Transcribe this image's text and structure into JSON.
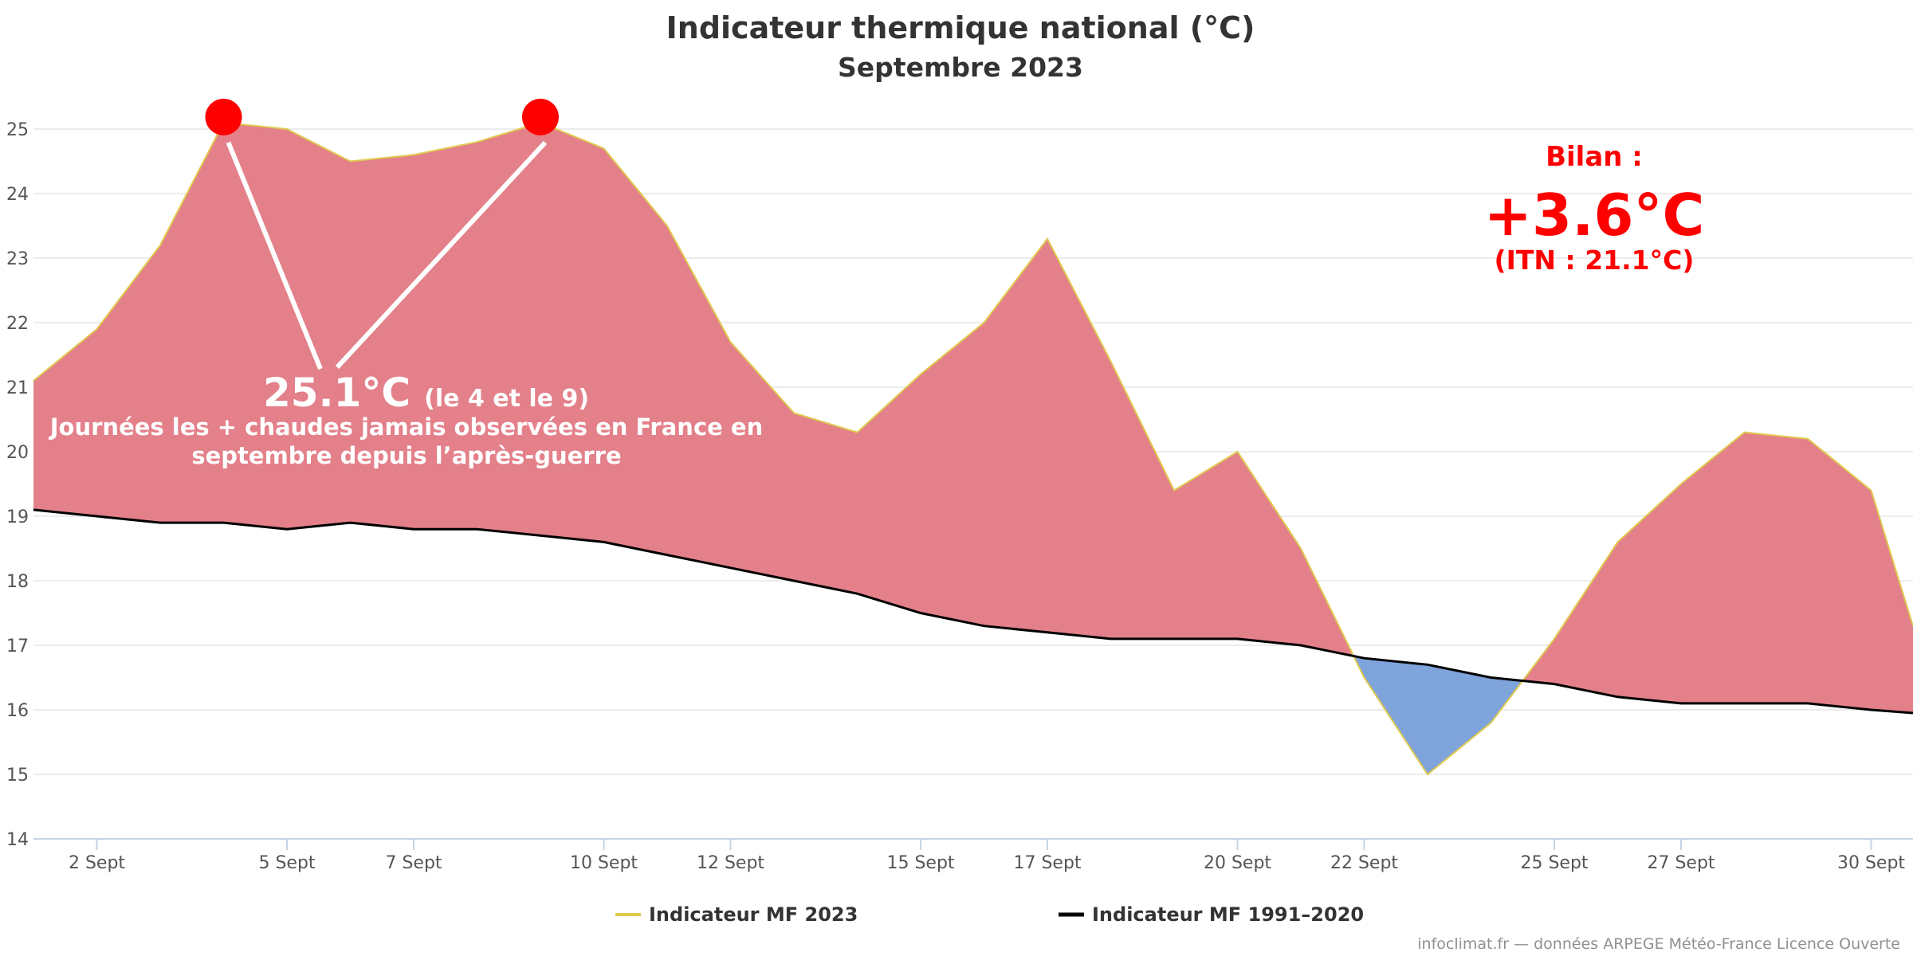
{
  "chart_data": {
    "type": "area",
    "title": "Indicateur thermique national (°C)",
    "subtitle": "Septembre 2023",
    "x": [
      1,
      2,
      3,
      4,
      5,
      6,
      7,
      8,
      9,
      10,
      11,
      12,
      13,
      14,
      15,
      16,
      17,
      18,
      19,
      20,
      21,
      22,
      23,
      24,
      25,
      26,
      27,
      28,
      29,
      30
    ],
    "x_tick_labels": [
      {
        "day": 2,
        "label": "2 Sept"
      },
      {
        "day": 5,
        "label": "5 Sept"
      },
      {
        "day": 7,
        "label": "7 Sept"
      },
      {
        "day": 10,
        "label": "10 Sept"
      },
      {
        "day": 12,
        "label": "12 Sept"
      },
      {
        "day": 15,
        "label": "15 Sept"
      },
      {
        "day": 17,
        "label": "17 Sept"
      },
      {
        "day": 20,
        "label": "20 Sept"
      },
      {
        "day": 22,
        "label": "22 Sept"
      },
      {
        "day": 25,
        "label": "25 Sept"
      },
      {
        "day": 27,
        "label": "27 Sept"
      },
      {
        "day": 30,
        "label": "30 Sept"
      }
    ],
    "ylim": [
      14,
      25.5
    ],
    "y_ticks": [
      14,
      15,
      16,
      17,
      18,
      19,
      20,
      21,
      22,
      23,
      24,
      25
    ],
    "grid": true,
    "legend_position": "bottom-center",
    "series": [
      {
        "name": "Indicateur MF 2023",
        "color": "#e0c94e",
        "values": [
          21.1,
          21.9,
          23.2,
          25.1,
          25.0,
          24.5,
          24.6,
          24.8,
          25.1,
          24.7,
          23.5,
          21.7,
          20.6,
          20.3,
          21.2,
          22.0,
          23.3,
          21.4,
          19.4,
          20.0,
          18.5,
          16.5,
          15.0,
          15.8,
          17.1,
          18.6,
          19.5,
          20.3,
          20.2,
          19.4
        ]
      },
      {
        "name": "Indicateur MF 1991–2020",
        "color": "#000000",
        "values": [
          19.1,
          19.0,
          18.9,
          18.9,
          18.8,
          18.9,
          18.8,
          18.8,
          18.7,
          18.6,
          18.4,
          18.2,
          18.0,
          17.8,
          17.5,
          17.3,
          17.2,
          17.1,
          17.1,
          17.1,
          17.0,
          16.8,
          16.7,
          16.5,
          16.4,
          16.2,
          16.1,
          16.1,
          16.1,
          16.0
        ]
      }
    ],
    "fill_above_color": "#e3808a",
    "fill_below_color": "#7fa3db",
    "annotation": {
      "value": "25.1°C",
      "detail": "(le 4 et le 9)",
      "line1": "Journées les + chaudes jamais observées en France en",
      "line2": "septembre depuis l’après-guerre",
      "marker_days": [
        4,
        9
      ],
      "marker_value": 25.1,
      "marker_color": "#ff0000"
    },
    "bilan": {
      "label": "Bilan :",
      "anomaly": "+3.6°C",
      "itn": "(ITN : 21.1°C)",
      "color": "#ff0000"
    }
  },
  "credit": "infoclimat.fr — données ARPEGE Météo-France Licence Ouverte"
}
